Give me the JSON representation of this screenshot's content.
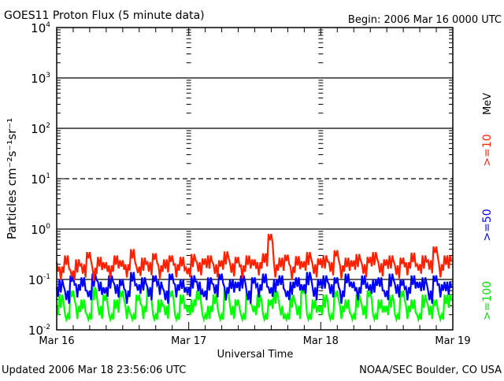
{
  "chart_data": {
    "type": "line",
    "title": "GOES11 Proton Flux (5 minute data)",
    "begin": "Begin: 2006 Mar 16 0000 UTC",
    "xlabel": "Universal Time",
    "ylabel": "Particles cm⁻²s⁻¹sr⁻¹",
    "yscale": "log",
    "ylim": [
      0.01,
      10000
    ],
    "xlim_hours": [
      0,
      72
    ],
    "x_tick_labels": [
      "Mar 16",
      "Mar 17",
      "Mar 18",
      "Mar 19"
    ],
    "y_tick_labels": [
      {
        "base": "10",
        "exp": "4"
      },
      {
        "base": "10",
        "exp": "3"
      },
      {
        "base": "10",
        "exp": "2"
      },
      {
        "base": "10",
        "exp": "1"
      },
      {
        "base": "10",
        "exp": "0"
      },
      {
        "base": "10",
        "exp": "-1"
      },
      {
        "base": "10",
        "exp": "-2"
      }
    ],
    "unit_label": "MeV",
    "x_hours_step": 1,
    "series": [
      {
        "name": ">=10",
        "color": "#ff2000",
        "values": [
          0.22,
          0.18,
          0.3,
          0.15,
          0.25,
          0.2,
          0.35,
          0.17,
          0.28,
          0.22,
          0.19,
          0.3,
          0.24,
          0.2,
          0.4,
          0.18,
          0.27,
          0.22,
          0.33,
          0.19,
          0.25,
          0.3,
          0.2,
          0.28,
          0.17,
          0.32,
          0.22,
          0.26,
          0.3,
          0.2,
          0.24,
          0.36,
          0.21,
          0.28,
          0.19,
          0.3,
          0.25,
          0.22,
          0.33,
          0.8,
          0.2,
          0.27,
          0.31,
          0.18,
          0.29,
          0.23,
          0.35,
          0.2,
          0.26,
          0.3,
          0.22,
          0.38,
          0.19,
          0.27,
          0.24,
          0.32,
          0.2,
          0.28,
          0.35,
          0.21,
          0.25,
          0.3,
          0.19,
          0.27,
          0.22,
          0.34,
          0.2,
          0.3,
          0.24,
          0.45,
          0.2,
          0.3
        ]
      },
      {
        "name": ">=50",
        "color": "#0000ff",
        "values": [
          0.07,
          0.1,
          0.06,
          0.12,
          0.08,
          0.11,
          0.06,
          0.13,
          0.09,
          0.07,
          0.12,
          0.08,
          0.1,
          0.06,
          0.14,
          0.08,
          0.11,
          0.07,
          0.12,
          0.09,
          0.06,
          0.13,
          0.08,
          0.1,
          0.07,
          0.12,
          0.09,
          0.06,
          0.11,
          0.08,
          0.13,
          0.07,
          0.1,
          0.09,
          0.12,
          0.06,
          0.11,
          0.08,
          0.13,
          0.07,
          0.1,
          0.12,
          0.06,
          0.09,
          0.11,
          0.08,
          0.14,
          0.07,
          0.1,
          0.12,
          0.08,
          0.11,
          0.06,
          0.13,
          0.09,
          0.07,
          0.12,
          0.08,
          0.1,
          0.11,
          0.06,
          0.13,
          0.08,
          0.1,
          0.07,
          0.12,
          0.09,
          0.11,
          0.06,
          0.12,
          0.08,
          0.09
        ]
      },
      {
        "name": ">=100",
        "color": "#00ff00",
        "values": [
          0.03,
          0.05,
          0.02,
          0.06,
          0.03,
          0.04,
          0.02,
          0.07,
          0.03,
          0.05,
          0.02,
          0.04,
          0.06,
          0.03,
          0.02,
          0.05,
          0.03,
          0.07,
          0.02,
          0.04,
          0.03,
          0.06,
          0.02,
          0.05,
          0.03,
          0.04,
          0.06,
          0.02,
          0.03,
          0.05,
          0.02,
          0.07,
          0.03,
          0.04,
          0.02,
          0.06,
          0.03,
          0.05,
          0.02,
          0.04,
          0.06,
          0.03,
          0.02,
          0.05,
          0.03,
          0.07,
          0.02,
          0.04,
          0.03,
          0.05,
          0.02,
          0.06,
          0.03,
          0.04,
          0.02,
          0.05,
          0.03,
          0.06,
          0.02,
          0.04,
          0.03,
          0.05,
          0.02,
          0.06,
          0.03,
          0.04,
          0.02,
          0.05,
          0.03,
          0.04,
          0.02,
          0.05
        ]
      }
    ]
  },
  "footer": {
    "updated": "Updated 2006 Mar 18 23:56:06 UTC",
    "source": "NOAA/SEC Boulder, CO USA"
  }
}
